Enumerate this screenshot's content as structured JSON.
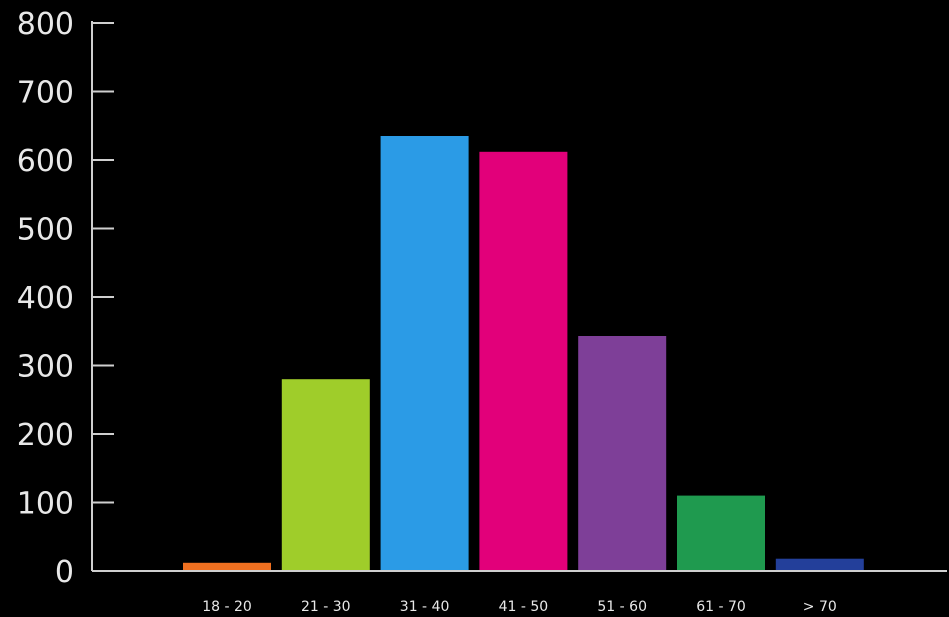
{
  "chart_data": {
    "type": "bar",
    "title": "",
    "xlabel": "",
    "ylabel": "",
    "categories": [
      "18 - 20",
      "21 - 30",
      "31 - 40",
      "41 - 50",
      "51 - 60",
      "61 - 70",
      "> 70"
    ],
    "values": [
      12,
      280,
      635,
      612,
      343,
      110,
      18
    ],
    "colors": [
      "#f07020",
      "#9fcd2a",
      "#2b9be6",
      "#e2007a",
      "#7e3f98",
      "#1f9a4f",
      "#233f9a"
    ],
    "ylim": [
      0,
      800
    ],
    "yticks": [
      "0",
      "100",
      "200",
      "300",
      "400",
      "500",
      "600",
      "700",
      "800"
    ],
    "grid": false,
    "legend": "none"
  }
}
